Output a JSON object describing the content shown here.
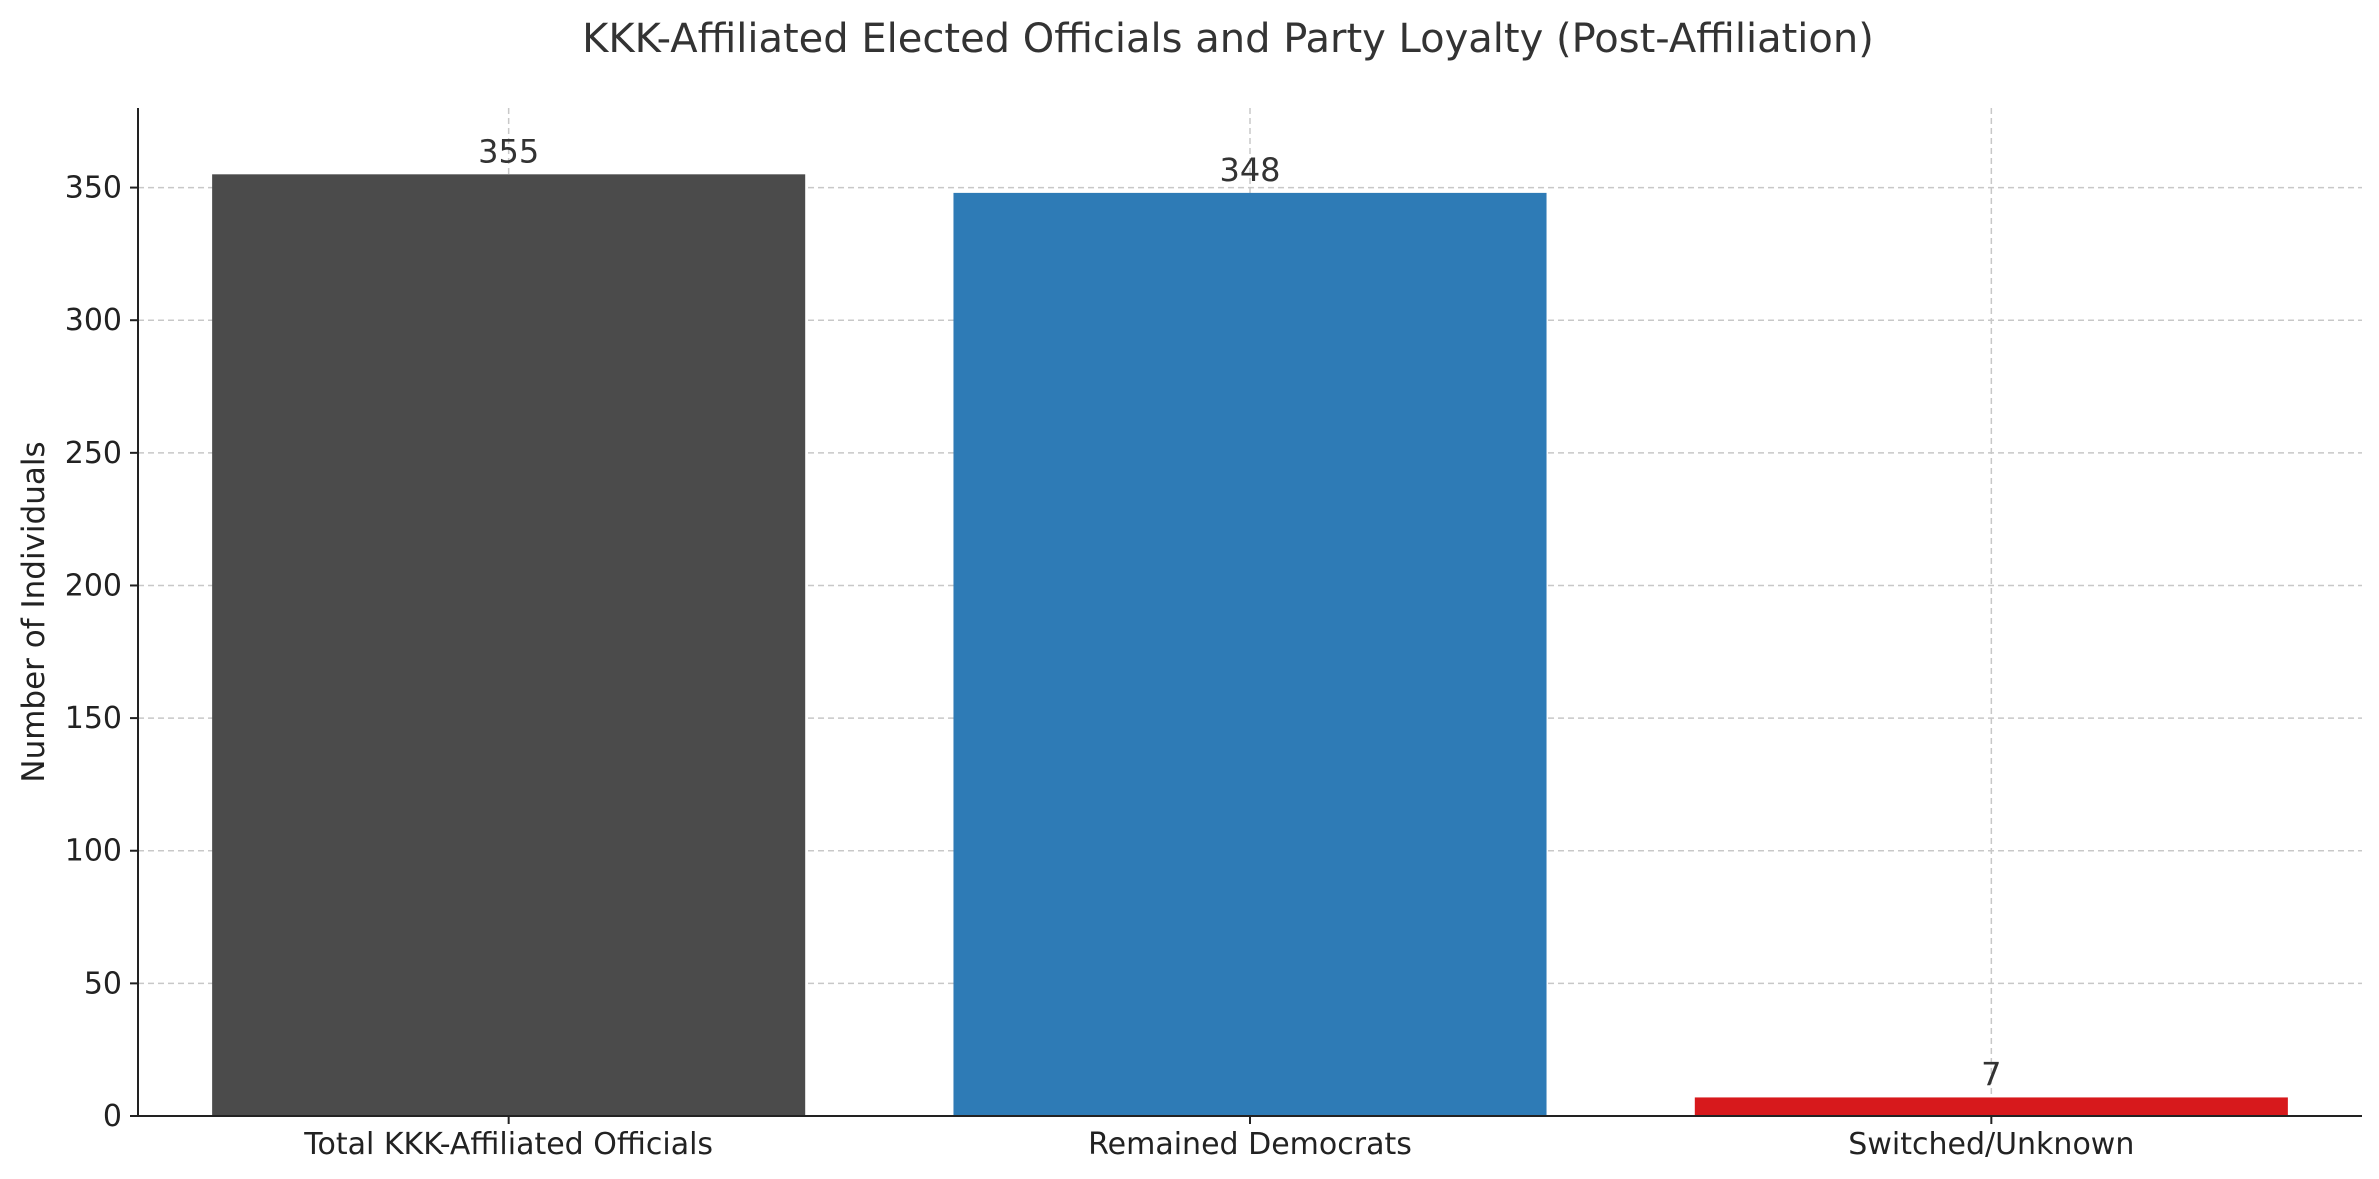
{
  "chart_data": {
    "type": "bar",
    "title": "KKK-Affiliated Elected Officials and Party Loyalty (Post-Affiliation)",
    "xlabel": "",
    "ylabel": "Number of Individuals",
    "categories": [
      "Total KKK-Affiliated Officials",
      "Remained Democrats",
      "Switched/Unknown"
    ],
    "values": [
      355,
      348,
      7
    ],
    "data_labels": [
      "355",
      "348",
      "7"
    ],
    "colors": [
      "#4b4b4b",
      "#2e7bb6",
      "#d7191c"
    ],
    "ylim": [
      0,
      380
    ],
    "yticks": [
      0,
      50,
      100,
      150,
      200,
      250,
      300,
      350
    ],
    "grid": true,
    "legend": "none"
  }
}
